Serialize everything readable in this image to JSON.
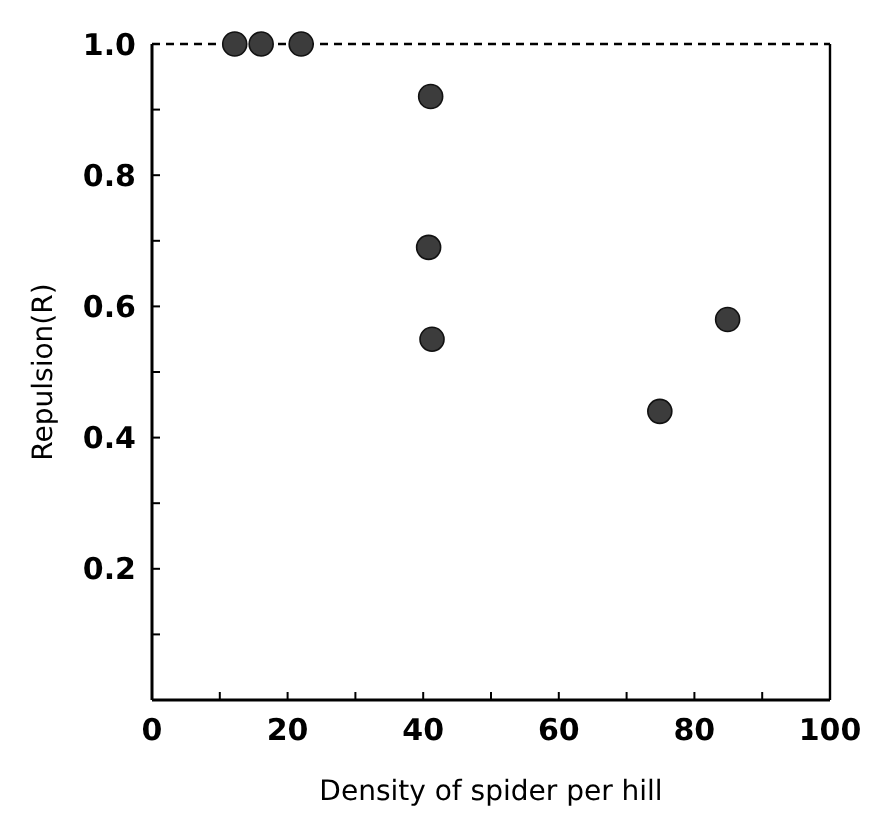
{
  "chart_data": {
    "type": "scatter",
    "xlabel": "Density of spider per hill",
    "ylabel": "Repulsion(R)",
    "x": [
      12.2,
      16.1,
      22.0,
      41.1,
      40.8,
      41.3,
      74.9,
      84.9
    ],
    "values": [
      1.0,
      1.0,
      1.0,
      0.92,
      0.69,
      0.55,
      0.44,
      0.58
    ],
    "color": "#3c3c3c",
    "marker": "circle",
    "xlim": [
      0,
      100
    ],
    "ylim": [
      0,
      1.0
    ],
    "xticks": [
      0,
      {
        "value": 10,
        "label": null
      },
      20,
      {
        "value": 30,
        "label": null
      },
      40,
      {
        "value": 50,
        "label": null
      },
      60,
      {
        "value": 70,
        "label": null
      },
      80,
      {
        "value": 90,
        "label": null
      },
      100
    ],
    "yticks": [
      {
        "value": 0.1,
        "label": null
      },
      0.2,
      {
        "value": 0.3,
        "label": null
      },
      0.4,
      {
        "value": 0.5,
        "label": null
      },
      0.6,
      {
        "value": 0.7,
        "label": null
      },
      0.8,
      {
        "value": 0.9,
        "label": null
      },
      {
        "value": 1.0,
        "label": "1.0"
      }
    ],
    "ref_lines": [
      {
        "axis": "y",
        "value": 1.0,
        "line_style": "dashed",
        "color": "#000000"
      }
    ],
    "grid": false
  }
}
